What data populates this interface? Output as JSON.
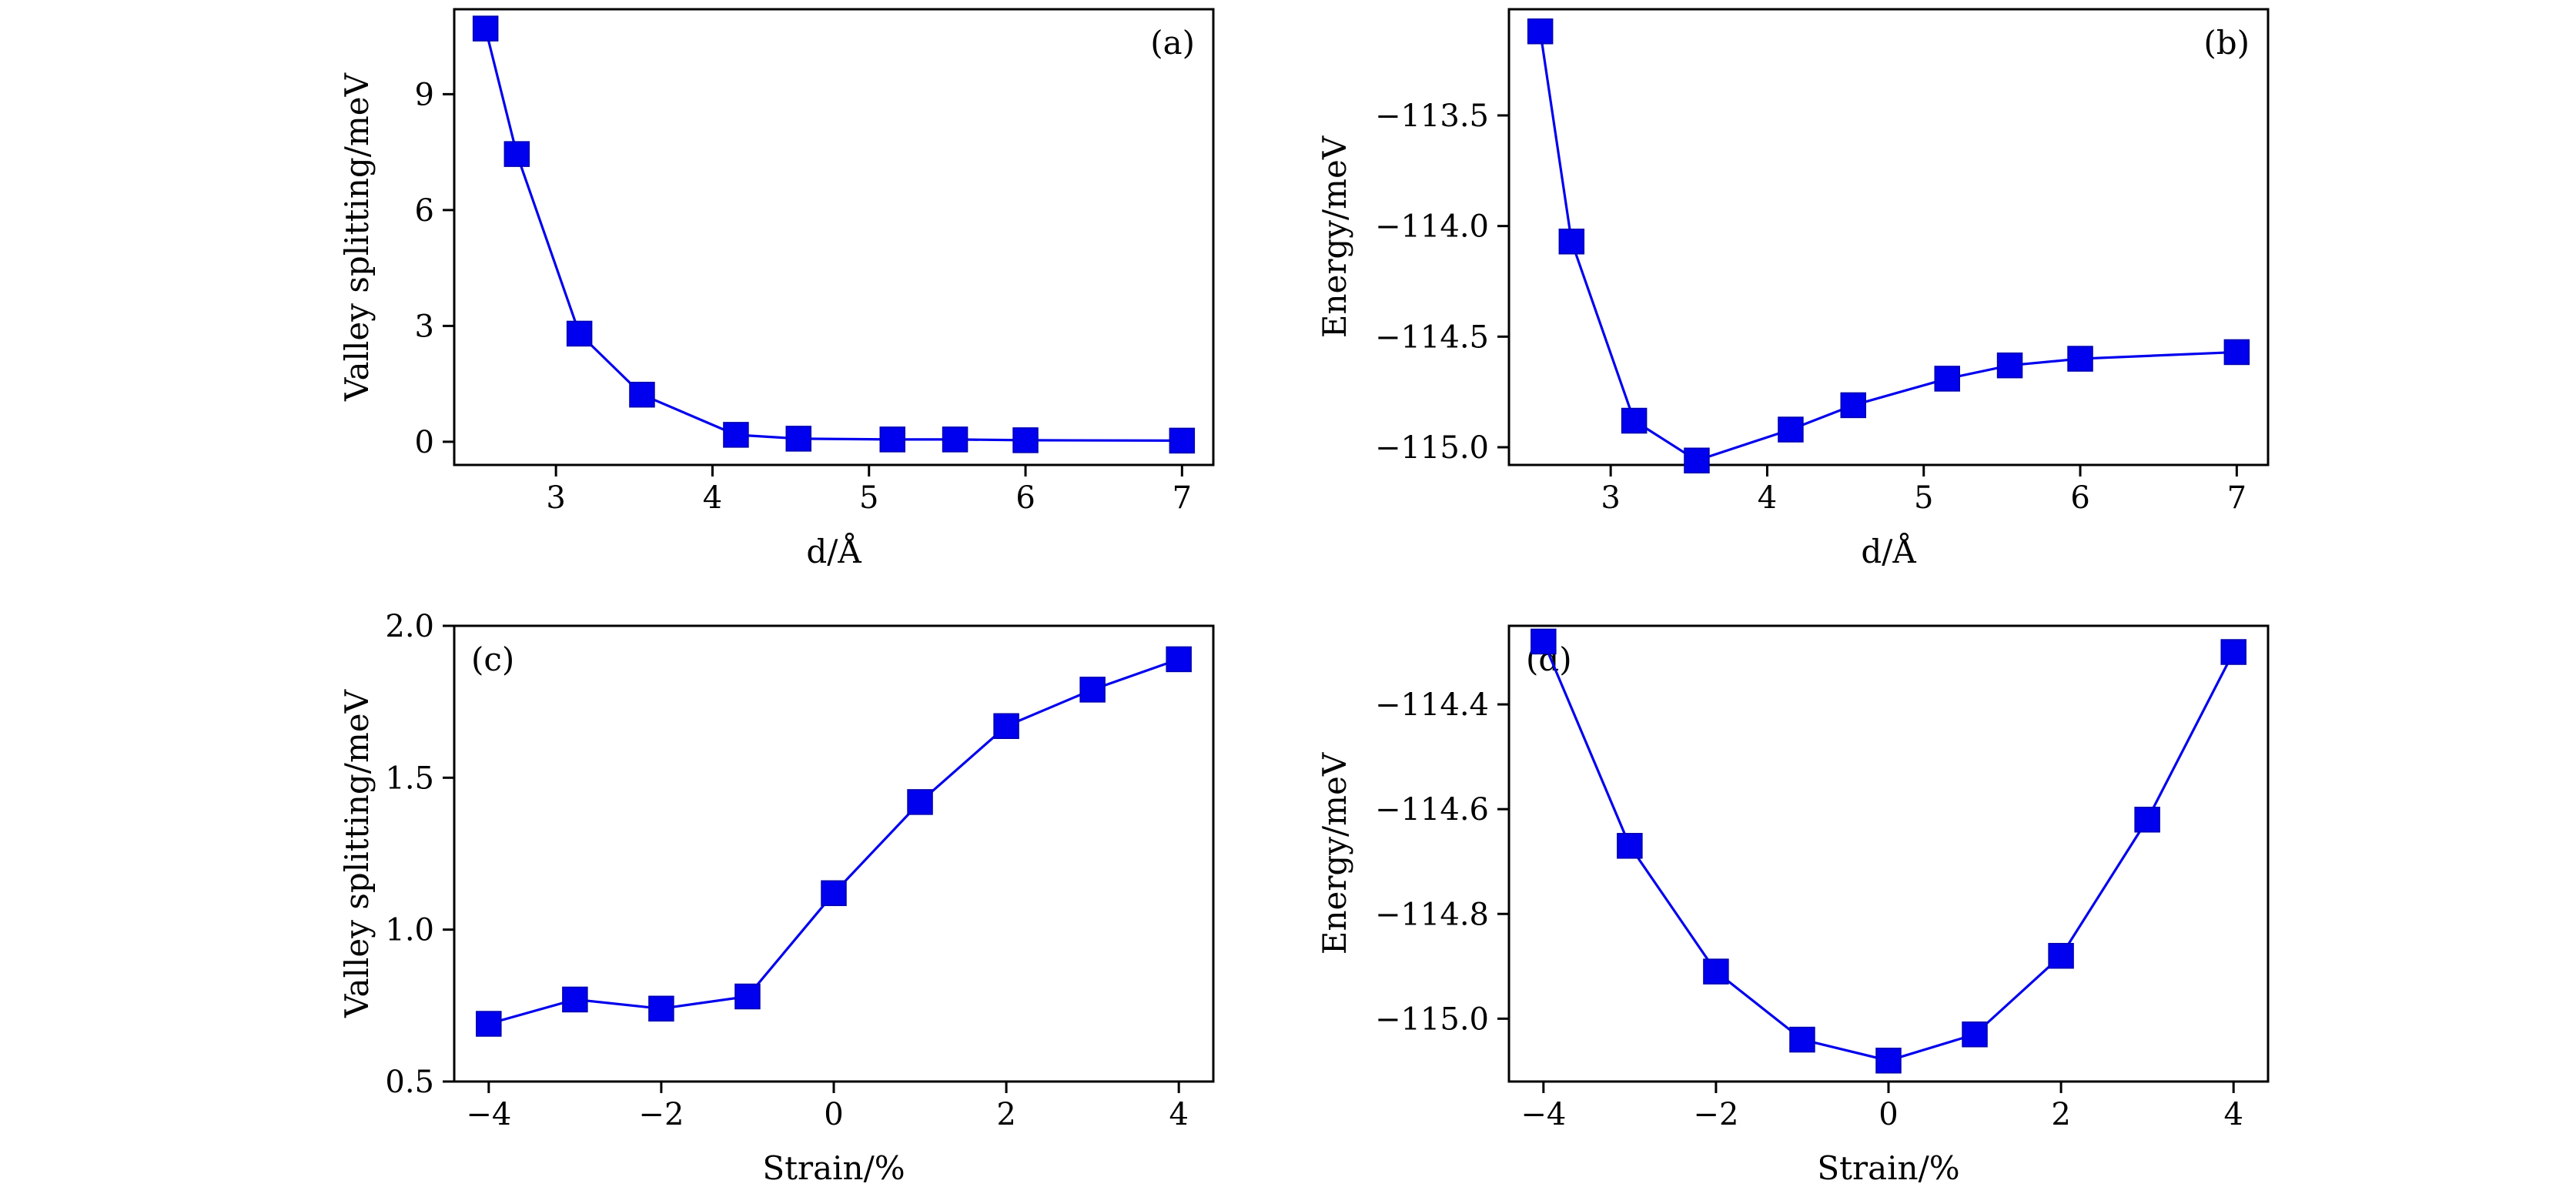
{
  "chart_data": [
    {
      "id": "a",
      "type": "line",
      "panel_label": "(a)",
      "xlabel": "d/Å",
      "ylabel": "Valley splitting/meV",
      "xlim": [
        2.35,
        7.2
      ],
      "ylim": [
        -0.6,
        11.2
      ],
      "xticks": [
        3,
        4,
        5,
        6,
        7
      ],
      "xtick_labels": [
        "3",
        "4",
        "5",
        "6",
        "7"
      ],
      "yticks": [
        0,
        3,
        6,
        9
      ],
      "ytick_labels": [
        "0",
        "3",
        "6",
        "9"
      ],
      "series": [
        {
          "name": "valley splitting",
          "color": "#0000ee",
          "marker": "square",
          "x": [
            2.55,
            2.75,
            3.15,
            3.55,
            4.15,
            4.55,
            5.15,
            5.55,
            6.0,
            7.0
          ],
          "y": [
            10.7,
            7.45,
            2.8,
            1.22,
            0.18,
            0.08,
            0.06,
            0.06,
            0.04,
            0.03
          ]
        }
      ]
    },
    {
      "id": "b",
      "type": "line",
      "panel_label": "(b)",
      "xlabel": "d/Å",
      "ylabel": "Energy/meV",
      "xlim": [
        2.35,
        7.2
      ],
      "ylim": [
        -115.08,
        -113.02
      ],
      "xticks": [
        3,
        4,
        5,
        6,
        7
      ],
      "xtick_labels": [
        "3",
        "4",
        "5",
        "6",
        "7"
      ],
      "yticks": [
        -115.0,
        -114.5,
        -114.0,
        -113.5
      ],
      "ytick_labels": [
        "−115.0",
        "−114.5",
        "−114.0",
        "−113.5"
      ],
      "series": [
        {
          "name": "energy",
          "color": "#0000ee",
          "marker": "square",
          "x": [
            2.55,
            2.75,
            3.15,
            3.55,
            4.15,
            4.55,
            5.15,
            5.55,
            6.0,
            7.0
          ],
          "y": [
            -113.12,
            -114.07,
            -114.88,
            -115.06,
            -114.92,
            -114.81,
            -114.69,
            -114.63,
            -114.6,
            -114.57
          ]
        }
      ]
    },
    {
      "id": "c",
      "type": "line",
      "panel_label": "(c)",
      "xlabel": "Strain/%",
      "ylabel": "Valley splitting/meV",
      "xlim": [
        -4.4,
        4.4
      ],
      "ylim": [
        0.5,
        2.0
      ],
      "xticks": [
        -4,
        -2,
        0,
        2,
        4
      ],
      "xtick_labels": [
        "−4",
        "−2",
        "0",
        "2",
        "4"
      ],
      "yticks": [
        0.5,
        1.0,
        1.5,
        2.0
      ],
      "ytick_labels": [
        "0.5",
        "1.0",
        "1.5",
        "2.0"
      ],
      "series": [
        {
          "name": "valley splitting",
          "color": "#0000ee",
          "marker": "square",
          "x": [
            -4,
            -3,
            -2,
            -1,
            0,
            1,
            2,
            3,
            4
          ],
          "y": [
            0.69,
            0.77,
            0.74,
            0.78,
            1.12,
            1.42,
            1.67,
            1.79,
            1.89
          ]
        }
      ]
    },
    {
      "id": "d",
      "type": "line",
      "panel_label": "(d)",
      "xlabel": "Strain/%",
      "ylabel": "Energy/meV",
      "xlim": [
        -4.4,
        4.4
      ],
      "ylim": [
        -115.12,
        -114.25
      ],
      "xticks": [
        -4,
        -2,
        0,
        2,
        4
      ],
      "xtick_labels": [
        "−4",
        "−2",
        "0",
        "2",
        "4"
      ],
      "yticks": [
        -115.0,
        -114.8,
        -114.6,
        -114.4
      ],
      "ytick_labels": [
        "−115.0",
        "−114.8",
        "−114.6",
        "−114.4"
      ],
      "series": [
        {
          "name": "energy",
          "color": "#0000ee",
          "marker": "square",
          "x": [
            -4,
            -3,
            -2,
            -1,
            0,
            1,
            2,
            3,
            4
          ],
          "y": [
            -114.28,
            -114.67,
            -114.91,
            -115.04,
            -115.08,
            -115.03,
            -114.88,
            -114.62,
            -114.3
          ]
        }
      ]
    }
  ]
}
